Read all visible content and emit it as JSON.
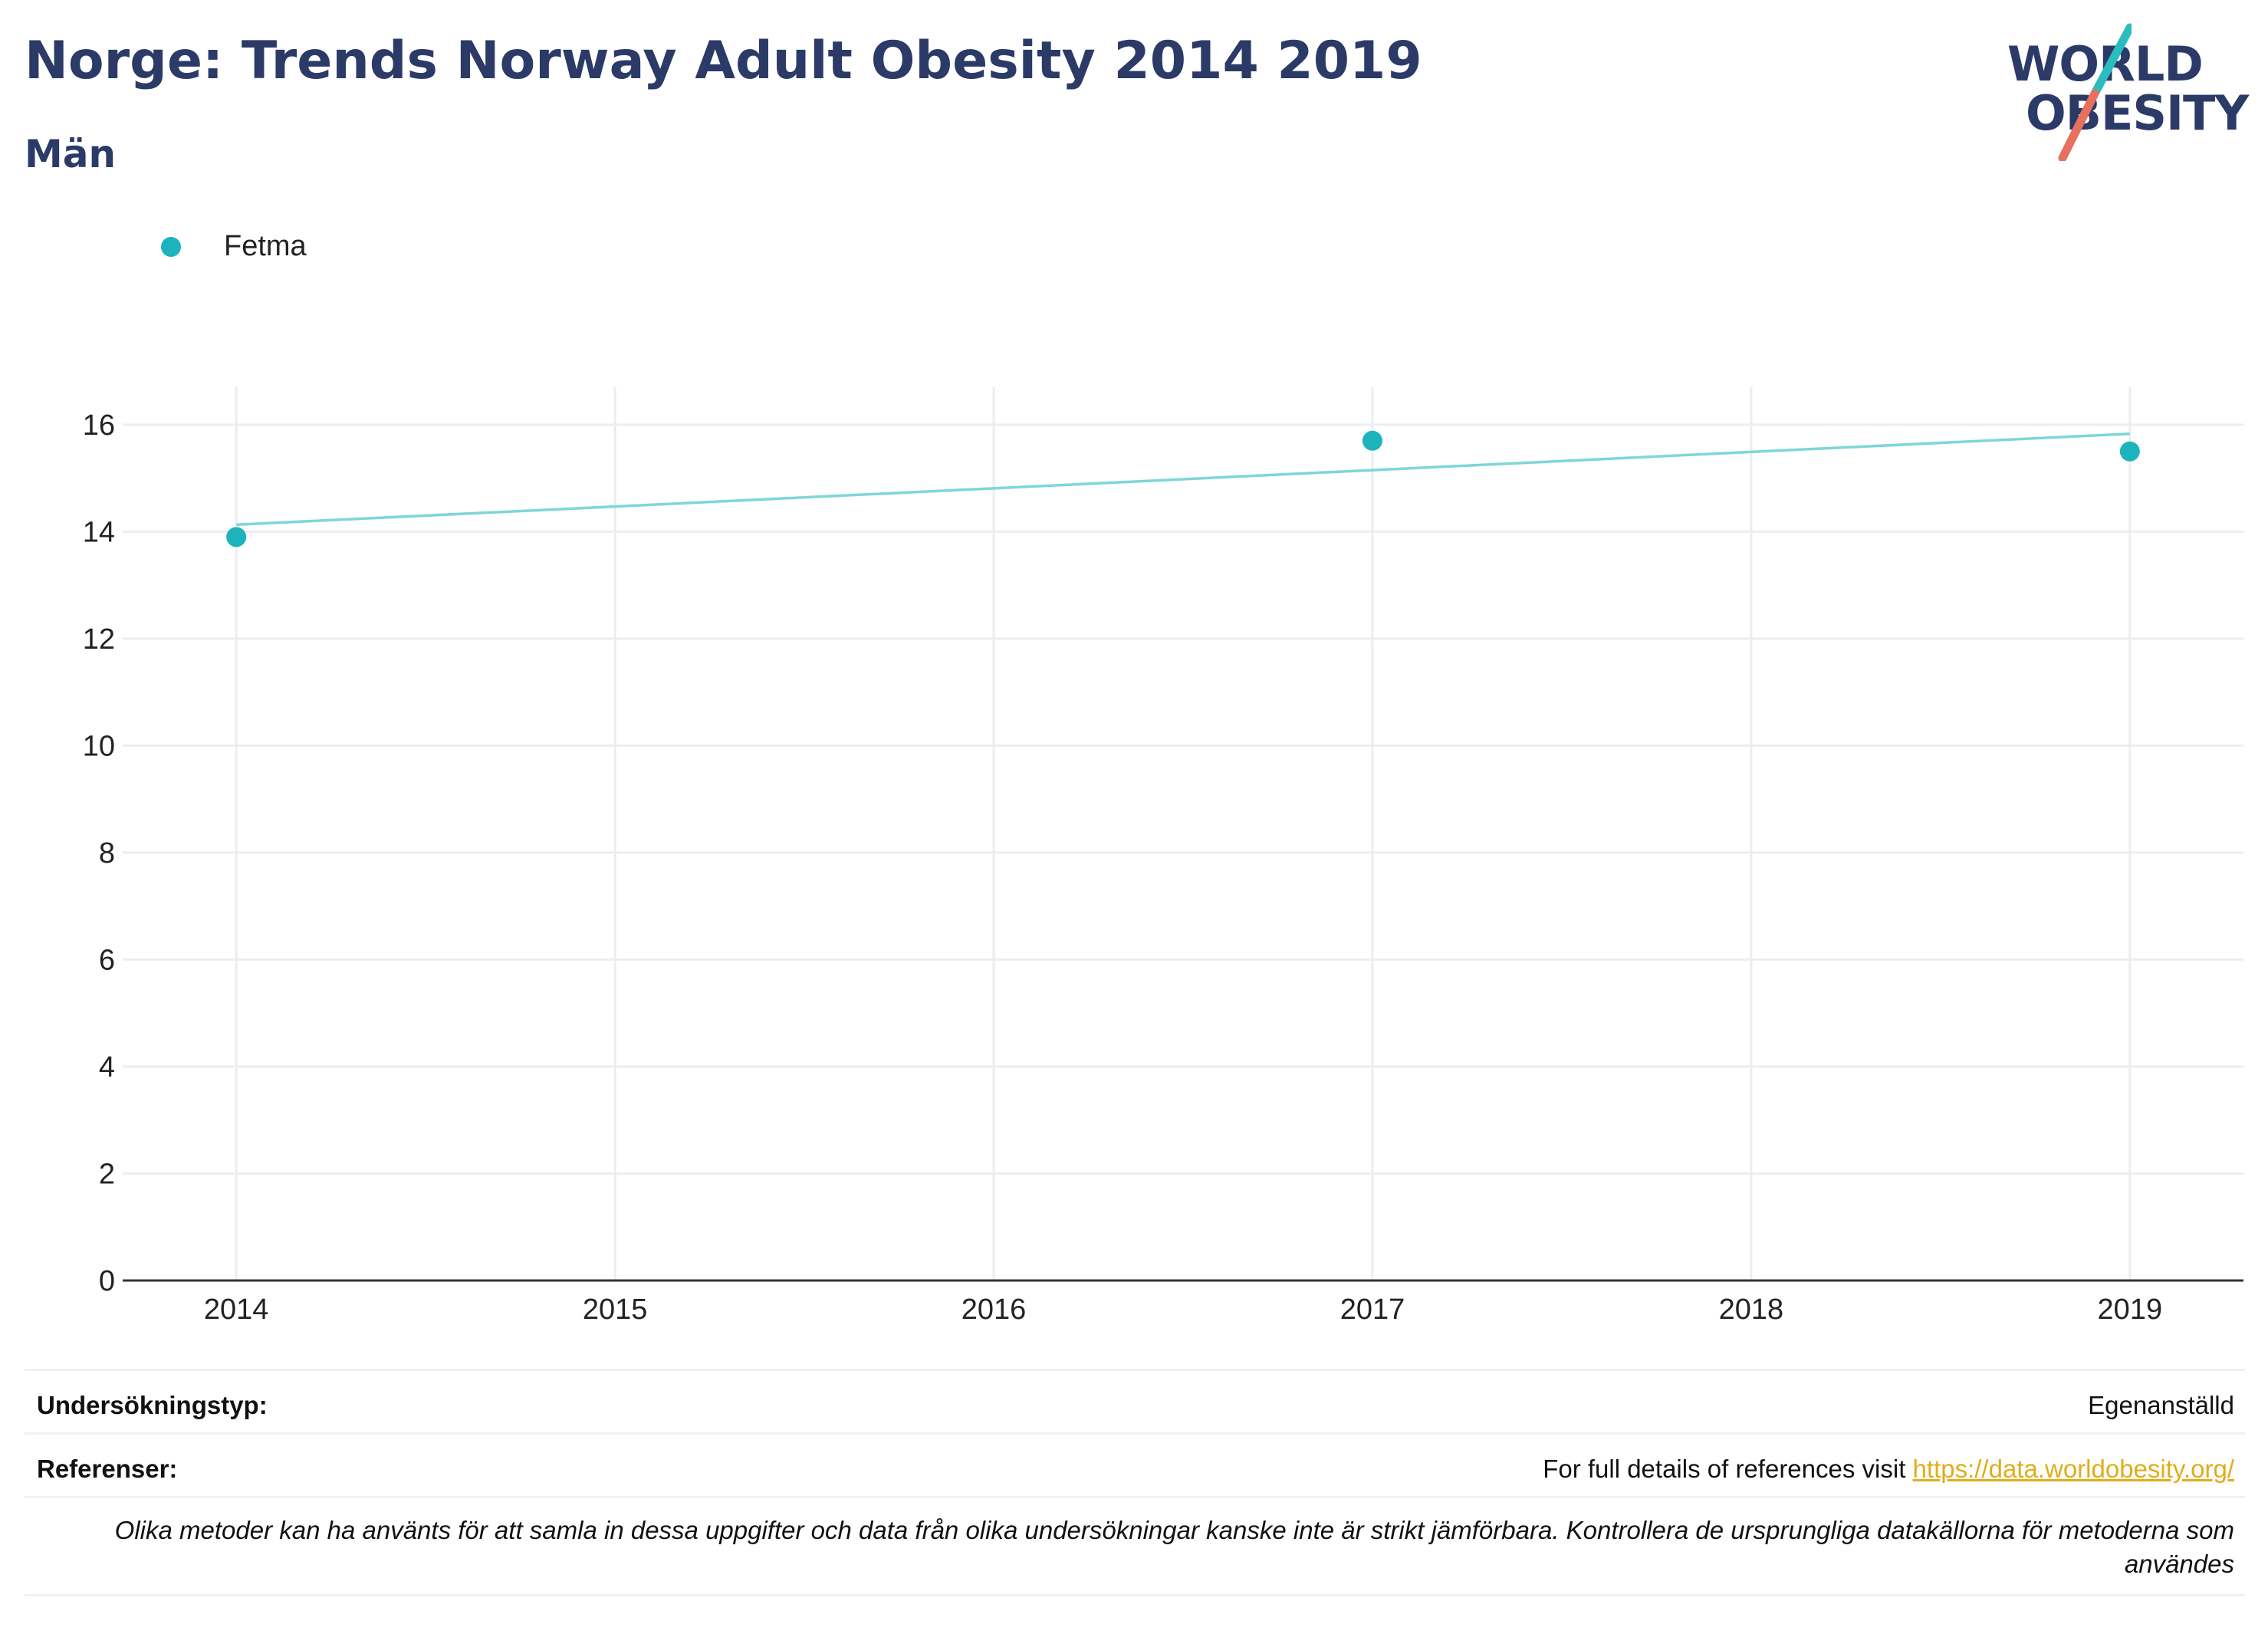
{
  "header": {
    "title": "Norge: Trends Norway Adult Obesity 2014 2019",
    "subtitle": "Män"
  },
  "logo": {
    "line1": "WORLD",
    "line2": "OBESITY"
  },
  "colors": {
    "series": "#1cb3bd",
    "trendline": "#7fd6d8",
    "title": "#2b3a67",
    "link": "#e0ad1a",
    "logo_teal": "#2bbcbf",
    "logo_coral": "#e8705f"
  },
  "legend": {
    "items": [
      {
        "label": "Fetma",
        "icon": "filled-circle"
      }
    ],
    "placement": "top-left"
  },
  "chart_data": {
    "type": "scatter",
    "x": [
      2014,
      2017,
      2019
    ],
    "series": [
      {
        "name": "Fetma",
        "values": [
          13.9,
          15.7,
          15.5
        ]
      }
    ],
    "trendline": {
      "x": [
        2014,
        2019
      ],
      "y": [
        14.13,
        15.83
      ]
    },
    "xticks": [
      2014,
      2015,
      2016,
      2017,
      2018,
      2019
    ],
    "yticks": [
      0,
      2,
      4,
      6,
      8,
      10,
      12,
      14,
      16
    ],
    "xlim": [
      2013.7,
      2019.3
    ],
    "ylim": [
      0,
      16.7
    ],
    "grid": true
  },
  "info": {
    "survey_type_label": "Undersökningstyp:",
    "survey_type_value": "Egenanställd",
    "references_label": "Referenser:",
    "references_text": "For full details of references visit ",
    "references_link": "https://data.worldobesity.org/",
    "note": "Olika metoder kan ha använts för att samla in dessa uppgifter och data från olika undersökningar kanske inte är strikt jämförbara. Kontrollera de ursprungliga datakällorna för metoderna som användes"
  }
}
